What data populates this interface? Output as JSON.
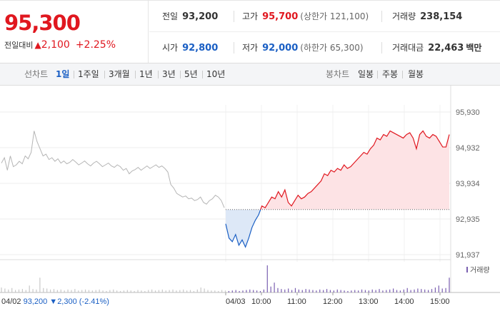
{
  "quote": {
    "price": "95,300",
    "change_label": "전일대비",
    "change_arrow": "▲",
    "change_value": "2,100",
    "change_percent": "+2.25%"
  },
  "stats": {
    "prev_close": {
      "label": "전일",
      "value": "93,200"
    },
    "high": {
      "label": "고가",
      "value": "95,700",
      "limit_label": "상한가",
      "limit_value": "121,100"
    },
    "volume": {
      "label": "거래량",
      "value": "238,154"
    },
    "open": {
      "label": "시가",
      "value": "92,800"
    },
    "low": {
      "label": "저가",
      "value": "92,000",
      "limit_label": "하한가",
      "limit_value": "65,300"
    },
    "amount": {
      "label": "거래대금",
      "value": "22,463",
      "unit": "백만"
    }
  },
  "tabs": {
    "line_label": "선차트",
    "line_periods": [
      "1일",
      "1주일",
      "3개월",
      "1년",
      "3년",
      "5년",
      "10년"
    ],
    "active_period": "1일",
    "candle_label": "봉차트",
    "candle_periods": [
      "일봉",
      "주봉",
      "월봉"
    ]
  },
  "colors": {
    "up": "#e0171f",
    "down": "#1a5fc4",
    "prev_day": "#b5b5b5",
    "up_fill": "#fde3e5",
    "down_fill": "#dde8f7",
    "volume": "#7a5fb0"
  },
  "chart_data": {
    "type": "line",
    "y_ticks": [
      "95,930",
      "94,932",
      "93,934",
      "92,935",
      "91,937"
    ],
    "y_tick_values": [
      95930,
      94932,
      93934,
      92935,
      91937
    ],
    "ylim": [
      91937,
      95930
    ],
    "baseline": 93200,
    "x_ticks": [
      "04/03",
      "10:00",
      "11:00",
      "12:00",
      "13:00",
      "14:00",
      "15:00"
    ],
    "prev_day": {
      "date": "04/02",
      "close": "93,200",
      "change_arrow": "▼",
      "change": "2,300",
      "change_percent": "(-2.41%)"
    },
    "prev_day_series": [
      94500,
      94650,
      94300,
      94700,
      94400,
      94450,
      94550,
      94480,
      94700,
      94620,
      94800,
      95400,
      95100,
      94900,
      94700,
      94750,
      94600,
      94650,
      94550,
      94620,
      94500,
      94560,
      94480,
      94520,
      94600,
      94530,
      94450,
      94500,
      94560,
      94480,
      94420,
      94500,
      94550,
      94480,
      94400,
      94450,
      94500,
      94420,
      94380,
      94450,
      94400,
      94300,
      94350,
      94200,
      94280,
      94320,
      94380,
      94300,
      94360,
      94420,
      94350,
      94400,
      94450,
      94380,
      94420,
      94350,
      94250,
      93900,
      93800,
      93650,
      93600,
      93550,
      93580,
      93500,
      93520,
      93450,
      93480,
      93550,
      93400,
      93350,
      93450,
      93500,
      93600,
      93550,
      93450,
      93250
    ],
    "today_series": [
      92800,
      92400,
      92300,
      92500,
      92200,
      92350,
      92150,
      92400,
      92700,
      92900,
      93050,
      93300,
      93250,
      93400,
      93550,
      93500,
      93700,
      93550,
      93750,
      93400,
      93300,
      93450,
      93600,
      93500,
      93550,
      93650,
      93700,
      93800,
      93900,
      94000,
      94200,
      94150,
      94300,
      94250,
      94350,
      94300,
      94450,
      94350,
      94400,
      94500,
      94600,
      94700,
      94800,
      94750,
      94900,
      95000,
      95200,
      95150,
      95300,
      95250,
      95400,
      95350,
      95300,
      95250,
      95200,
      95300,
      95350,
      95200,
      94900,
      95300,
      95400,
      95250,
      95200,
      95300,
      95250,
      95100,
      94950,
      94950,
      95300
    ],
    "volume_series": [
      10,
      8,
      6,
      9,
      5,
      6,
      7,
      5,
      14,
      7,
      6,
      30,
      9,
      8,
      6,
      7,
      5,
      6,
      4,
      6,
      5,
      7,
      4,
      5,
      6,
      5,
      4,
      5,
      6,
      4,
      3,
      5,
      6,
      4,
      3,
      4,
      5,
      4,
      3,
      5,
      4,
      3,
      5,
      6,
      4,
      5,
      6,
      4,
      5,
      6,
      4,
      5,
      6,
      4,
      5,
      3,
      6,
      10,
      8,
      5,
      4,
      4,
      3,
      5,
      4,
      3,
      4,
      5,
      3,
      4,
      5,
      6,
      5,
      4,
      3,
      6,
      55,
      12,
      20,
      9,
      7,
      6,
      8,
      5,
      9,
      6,
      5,
      7,
      6,
      5,
      4,
      6,
      5,
      7,
      5,
      4,
      6,
      5,
      4,
      3,
      4,
      5,
      4,
      6,
      5,
      4,
      6,
      5,
      7,
      4,
      5,
      6,
      8,
      5,
      4,
      6,
      9,
      5,
      6,
      8,
      7,
      6,
      5,
      7,
      10,
      14,
      8,
      9,
      30
    ],
    "volume_label": "거래량"
  }
}
